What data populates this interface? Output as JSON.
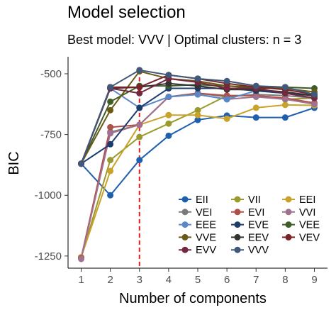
{
  "chart_data": {
    "type": "line",
    "title": "Model selection",
    "subtitle": "Best model: VVV | Optimal clusters: n = 3",
    "xlabel": "Number of components",
    "ylabel": "BIC",
    "x": [
      1,
      2,
      3,
      4,
      5,
      6,
      7,
      8,
      9
    ],
    "xlim": [
      0.55,
      9.45
    ],
    "ylim": [
      -1300,
      -430
    ],
    "yticks": [
      -1250,
      -1000,
      -750,
      -500
    ],
    "ytick_labels": [
      "-1250",
      "-1000",
      "-750",
      "-500"
    ],
    "optimal_x": 3,
    "optimal_line_color": "#e41a1c",
    "grid": false,
    "legend_position": "bottom-right",
    "legend_columns": 3,
    "series": [
      {
        "name": "EII",
        "color": "#1f5fb0",
        "values": [
          -870,
          -1000,
          -855,
          -755,
          -690,
          -672,
          -680,
          -680,
          -640
        ]
      },
      {
        "name": "VII",
        "color": "#9a9a2e",
        "values": [
          -1255,
          -855,
          -760,
          -705,
          -650,
          -590,
          -590,
          -605,
          -600
        ]
      },
      {
        "name": "EEI",
        "color": "#c9a22a",
        "values": [
          -1255,
          -900,
          -710,
          -670,
          -670,
          -685,
          -640,
          -628,
          -630
        ]
      },
      {
        "name": "VEI",
        "color": "#7a7a7a",
        "values": [
          -1258,
          -740,
          -710,
          -595,
          -580,
          -595,
          -585,
          -590,
          -600
        ]
      },
      {
        "name": "EVI",
        "color": "#b0504a",
        "values": [
          -1258,
          -720,
          -710,
          -595,
          -580,
          -590,
          -590,
          -600,
          -620
        ]
      },
      {
        "name": "VVI",
        "color": "#a0728f",
        "values": [
          -1262,
          -745,
          -710,
          -595,
          -585,
          -605,
          -595,
          -605,
          -625
        ]
      },
      {
        "name": "EEE",
        "color": "#5a87c6",
        "values": [
          -870,
          -560,
          -640,
          -595,
          -585,
          -605,
          -570,
          -580,
          -600
        ]
      },
      {
        "name": "EVE",
        "color": "#1c3c6e",
        "values": [
          -870,
          -790,
          -640,
          -560,
          -560,
          -560,
          -570,
          -580,
          -590
        ]
      },
      {
        "name": "VEE",
        "color": "#3f5d27",
        "values": [
          -870,
          -615,
          -550,
          -550,
          -545,
          -550,
          -555,
          -555,
          -560
        ]
      },
      {
        "name": "VVE",
        "color": "#6b5a16",
        "values": [
          -870,
          -650,
          -490,
          -520,
          -530,
          -550,
          -560,
          -560,
          -575
        ]
      },
      {
        "name": "EEV",
        "color": "#333333",
        "values": [
          -870,
          -560,
          -555,
          -540,
          -550,
          -565,
          -565,
          -575,
          -590
        ]
      },
      {
        "name": "VEV",
        "color": "#7a2328",
        "values": [
          -870,
          -555,
          -555,
          -505,
          -520,
          -540,
          -555,
          -565,
          -585
        ]
      },
      {
        "name": "EVV",
        "color": "#73283d",
        "values": [
          -870,
          -560,
          -580,
          -520,
          -535,
          -560,
          -560,
          -580,
          -600
        ]
      },
      {
        "name": "VVV",
        "color": "#40587a",
        "values": [
          -870,
          -555,
          -485,
          -505,
          -520,
          -530,
          -550,
          -555,
          -585
        ]
      }
    ]
  }
}
